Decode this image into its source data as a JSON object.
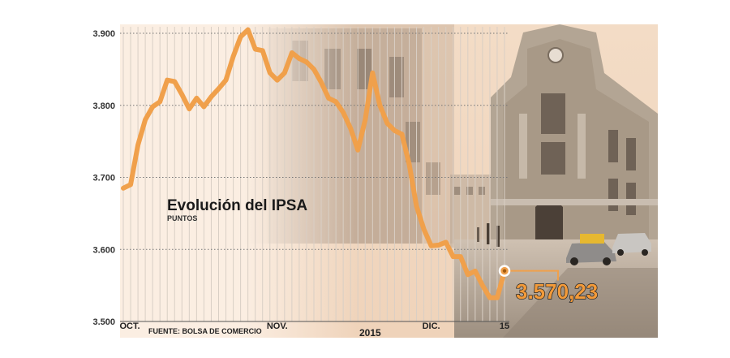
{
  "colors": {
    "line": "#f0a04b",
    "background": "#fbeee2",
    "grid_vertical": "#d9cfc5",
    "grid_dotted": "#777777",
    "value_callout": "#f29a3a",
    "photo_warm": "#e9c8a8",
    "photo_stone": "#b9ad9e"
  },
  "image": {
    "description_icon": "building-photo-icon"
  },
  "chart_data": {
    "type": "line",
    "title": "Evolución del IPSA",
    "subtitle": "PUNTOS",
    "source": "FUENTE: BOLSA DE COMERCIO",
    "year_label": "2015",
    "ylim": [
      3500,
      3900
    ],
    "y_ticks": [
      3500,
      3600,
      3700,
      3800,
      3900
    ],
    "y_tick_labels": [
      "3.500",
      "3.600",
      "3.700",
      "3.800",
      "3.900"
    ],
    "grid": "vertical lines per trading day, dotted horizontal lines",
    "x_labels": [
      "OCT.",
      "NOV.",
      "DIC.",
      "15"
    ],
    "x_label_positions": [
      0,
      21,
      42,
      52
    ],
    "x": [
      0,
      1,
      2,
      3,
      4,
      5,
      6,
      7,
      8,
      9,
      10,
      11,
      12,
      13,
      14,
      15,
      16,
      17,
      18,
      19,
      20,
      21,
      22,
      23,
      24,
      25,
      26,
      27,
      28,
      29,
      30,
      31,
      32,
      33,
      34,
      35,
      36,
      37,
      38,
      39,
      40,
      41,
      42,
      43,
      44,
      45,
      46,
      47,
      48,
      49,
      50,
      51,
      52
    ],
    "series": [
      {
        "values": [
          3685,
          3690,
          3745,
          3780,
          3798,
          3805,
          3835,
          3833,
          3815,
          3795,
          3810,
          3798,
          3812,
          3823,
          3835,
          3868,
          3895,
          3905,
          3878,
          3876,
          3845,
          3835,
          3845,
          3873,
          3865,
          3860,
          3850,
          3832,
          3810,
          3805,
          3790,
          3768,
          3738,
          3780,
          3845,
          3800,
          3775,
          3765,
          3760,
          3718,
          3660,
          3628,
          3605,
          3606,
          3610,
          3590,
          3590,
          3565,
          3570,
          3550,
          3533,
          3533,
          3570
        ]
      }
    ],
    "last_value_label": "3.570,23",
    "last_value": 3570.23
  }
}
